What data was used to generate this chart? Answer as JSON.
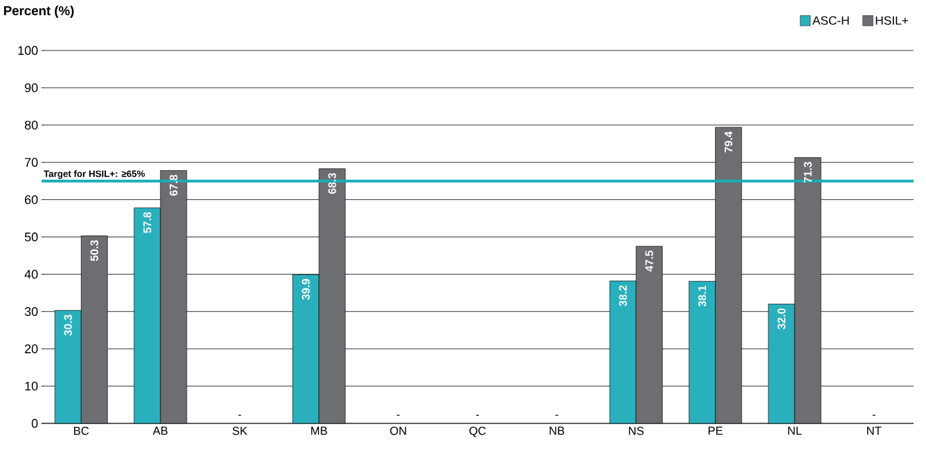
{
  "chart_data": {
    "type": "bar",
    "ylabel": "Percent (%)",
    "categories": [
      "BC",
      "AB",
      "SK",
      "MB",
      "ON",
      "QC",
      "NB",
      "NS",
      "PE",
      "NL",
      "NT"
    ],
    "series": [
      {
        "name": "ASC-H",
        "color": "#2ab0bd",
        "values": [
          30.3,
          57.8,
          null,
          39.9,
          null,
          null,
          null,
          38.2,
          38.1,
          32.0,
          null
        ],
        "value_labels": [
          "30.3",
          "57.8",
          null,
          "39.9",
          null,
          null,
          null,
          "38.2",
          "38.1",
          "32.0",
          null
        ]
      },
      {
        "name": "HSIL+",
        "color": "#6d6e71",
        "values": [
          50.3,
          67.8,
          null,
          68.3,
          null,
          null,
          null,
          47.5,
          79.4,
          71.3,
          null
        ],
        "value_labels": [
          "50.3",
          "67.8",
          null,
          "68.3",
          null,
          null,
          null,
          "47.5",
          "79.4",
          "71.3",
          null
        ]
      }
    ],
    "ylim": [
      0,
      100
    ],
    "yticks": [
      0,
      10,
      20,
      30,
      40,
      50,
      60,
      70,
      80,
      90,
      100
    ],
    "grid": "y",
    "legend": "top right",
    "ref_lines": [
      {
        "axis": "y",
        "value": 65,
        "label": "Target for HSIL+: ≥65%",
        "color": "#1aadb9"
      }
    ],
    "annotations": [
      "-",
      "-",
      "-",
      "-",
      "-"
    ]
  }
}
